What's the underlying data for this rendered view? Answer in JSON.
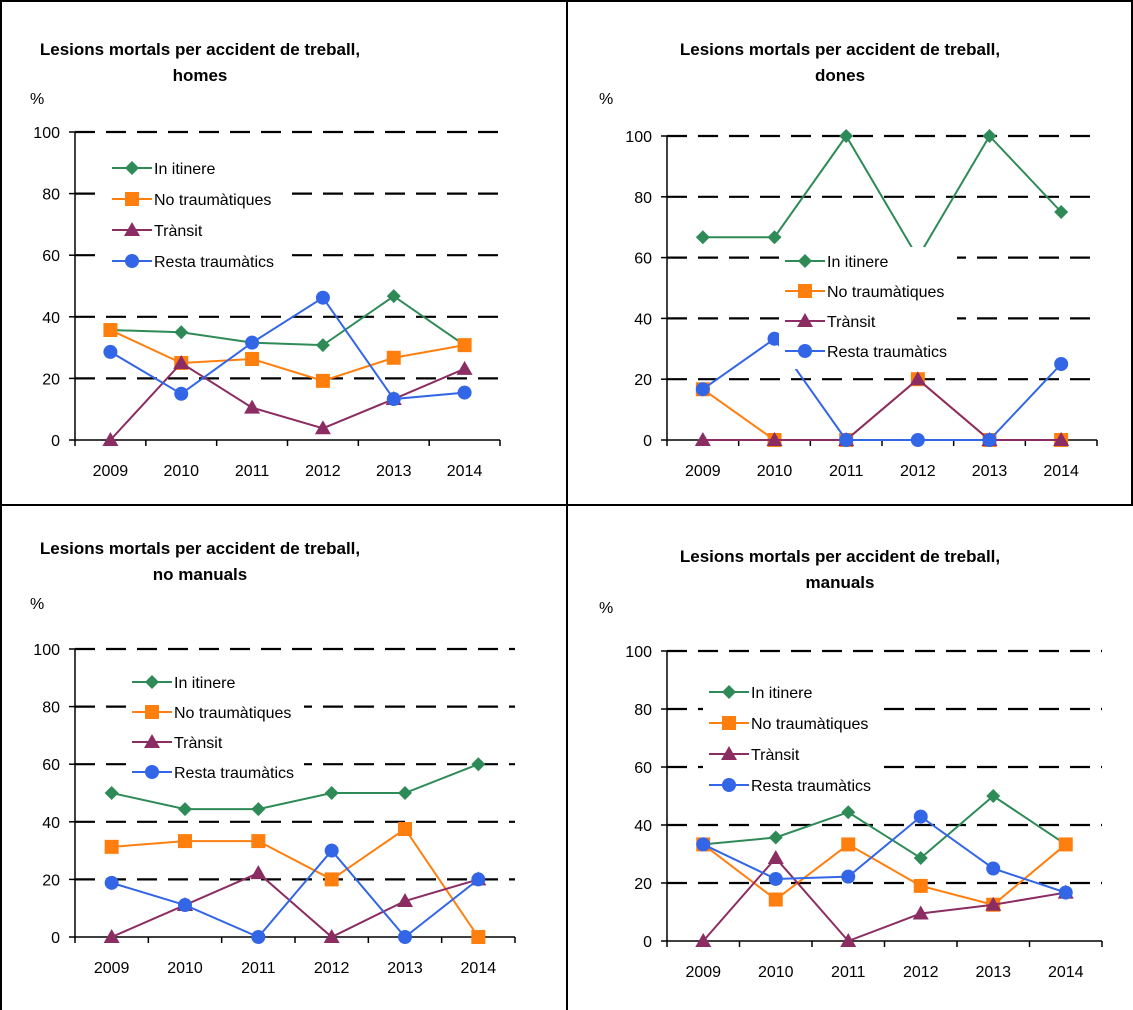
{
  "chart_data": [
    {
      "type": "line",
      "title": "Lesions mortals per accident de treball,",
      "subtitle": "homes",
      "ylabel": "%",
      "ylim": [
        0,
        100
      ],
      "yticks": [
        0,
        20,
        40,
        60,
        80,
        100
      ],
      "grid": true,
      "legend": "upper-left",
      "categories": [
        "2009",
        "2010",
        "2011",
        "2012",
        "2013",
        "2014"
      ],
      "series": [
        {
          "name": "In itinere",
          "color": "#2e8b57",
          "marker": "diamond",
          "values": [
            35.7,
            35.0,
            31.6,
            30.8,
            46.7,
            30.8
          ]
        },
        {
          "name": "No traumàtiques",
          "color": "#ff7f0e",
          "marker": "square",
          "values": [
            35.7,
            25.0,
            26.3,
            19.2,
            26.7,
            30.8
          ]
        },
        {
          "name": "Trànsit",
          "color": "#8b2d63",
          "marker": "triangle",
          "values": [
            0,
            25.0,
            10.5,
            3.8,
            13.3,
            23.1
          ]
        },
        {
          "name": "Resta traumàtics",
          "color": "#3366e6",
          "marker": "circle",
          "values": [
            28.6,
            15.0,
            31.6,
            46.2,
            13.3,
            15.4
          ]
        }
      ]
    },
    {
      "type": "line",
      "title": "Lesions mortals per accident de treball,",
      "subtitle": "dones",
      "ylabel": "%",
      "ylim": [
        0,
        100
      ],
      "yticks": [
        0,
        20,
        40,
        60,
        80,
        100
      ],
      "grid": true,
      "legend": "center-right",
      "categories": [
        "2009",
        "2010",
        "2011",
        "2012",
        "2013",
        "2014"
      ],
      "series": [
        {
          "name": "In itinere",
          "color": "#2e8b57",
          "marker": "diamond",
          "values": [
            66.7,
            66.7,
            100,
            60,
            100,
            75
          ]
        },
        {
          "name": "No traumàtiques",
          "color": "#ff7f0e",
          "marker": "square",
          "values": [
            16.7,
            0,
            0,
            20,
            0,
            0
          ]
        },
        {
          "name": "Trànsit",
          "color": "#8b2d63",
          "marker": "triangle",
          "values": [
            0,
            0,
            0,
            20,
            0,
            0
          ]
        },
        {
          "name": "Resta traumàtics",
          "color": "#3366e6",
          "marker": "circle",
          "values": [
            16.7,
            33.3,
            0,
            0,
            0,
            25
          ]
        }
      ]
    },
    {
      "type": "line",
      "title": "Lesions mortals per accident de treball,",
      "subtitle": "no manuals",
      "ylabel": "%",
      "ylim": [
        0,
        100
      ],
      "yticks": [
        0,
        20,
        40,
        60,
        80,
        100
      ],
      "grid": true,
      "legend": "upper-center",
      "categories": [
        "2009",
        "2010",
        "2011",
        "2012",
        "2013",
        "2014"
      ],
      "series": [
        {
          "name": "In itinere",
          "color": "#2e8b57",
          "marker": "diamond",
          "values": [
            50,
            44.4,
            44.4,
            50,
            50,
            60
          ]
        },
        {
          "name": "No traumàtiques",
          "color": "#ff7f0e",
          "marker": "square",
          "values": [
            31.3,
            33.3,
            33.3,
            20,
            37.5,
            0
          ]
        },
        {
          "name": "Trànsit",
          "color": "#8b2d63",
          "marker": "triangle",
          "values": [
            0,
            11.1,
            22.2,
            0,
            12.5,
            20
          ]
        },
        {
          "name": "Resta traumàtics",
          "color": "#3366e6",
          "marker": "circle",
          "values": [
            18.8,
            11.1,
            0,
            30,
            0,
            20
          ]
        }
      ]
    },
    {
      "type": "line",
      "title": "Lesions mortals per accident de treball,",
      "subtitle": "manuals",
      "ylabel": "%",
      "ylim": [
        0,
        100
      ],
      "yticks": [
        0,
        20,
        40,
        60,
        80,
        100
      ],
      "grid": true,
      "legend": "upper-center",
      "categories": [
        "2009",
        "2010",
        "2011",
        "2012",
        "2013",
        "2014"
      ],
      "series": [
        {
          "name": "In itinere",
          "color": "#2e8b57",
          "marker": "diamond",
          "values": [
            33.3,
            35.7,
            44.4,
            28.6,
            50,
            33.3
          ]
        },
        {
          "name": "No traumàtiques",
          "color": "#ff7f0e",
          "marker": "square",
          "values": [
            33.3,
            14.3,
            33.3,
            19,
            12.5,
            33.3
          ]
        },
        {
          "name": "Trànsit",
          "color": "#8b2d63",
          "marker": "triangle",
          "values": [
            0,
            28.6,
            0,
            9.5,
            12.5,
            16.7
          ]
        },
        {
          "name": "Resta traumàtics",
          "color": "#3366e6",
          "marker": "circle",
          "values": [
            33.3,
            21.4,
            22.2,
            42.9,
            25,
            16.7
          ]
        }
      ]
    }
  ]
}
